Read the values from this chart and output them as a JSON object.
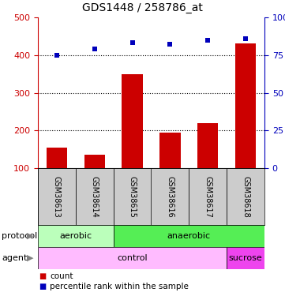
{
  "title": "GDS1448 / 258786_at",
  "samples": [
    "GSM38613",
    "GSM38614",
    "GSM38615",
    "GSM38616",
    "GSM38617",
    "GSM38618"
  ],
  "counts": [
    155,
    135,
    350,
    195,
    220,
    430
  ],
  "percentiles": [
    75,
    79,
    83,
    82,
    85,
    86
  ],
  "ylim_left": [
    100,
    500
  ],
  "ylim_right": [
    0,
    100
  ],
  "yticks_left": [
    100,
    200,
    300,
    400,
    500
  ],
  "yticks_right": [
    0,
    25,
    50,
    75,
    100
  ],
  "bar_color": "#cc0000",
  "dot_color": "#0000bb",
  "protocol_labels": [
    [
      "aerobic",
      0,
      2
    ],
    [
      "anaerobic",
      2,
      6
    ]
  ],
  "agent_labels": [
    [
      "control",
      0,
      5
    ],
    [
      "sucrose",
      5,
      6
    ]
  ],
  "protocol_color_aerobic": "#bbffbb",
  "protocol_color_anaerobic": "#55ee55",
  "agent_color_control": "#ffbbff",
  "agent_color_sucrose": "#ee44ee",
  "label_row_color": "#cccccc",
  "legend_count_color": "#cc0000",
  "legend_dot_color": "#0000bb",
  "grid_ticks": [
    200,
    300,
    400
  ]
}
